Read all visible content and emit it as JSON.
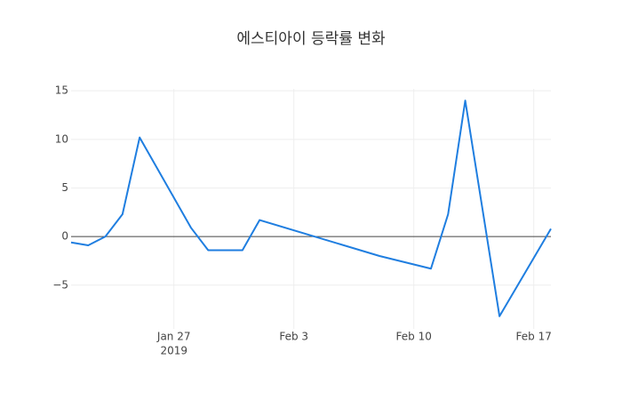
{
  "chart_data": {
    "type": "line",
    "title": "에스티아이 등락률 변화",
    "x": [
      "2019-01-21",
      "2019-01-22",
      "2019-01-23",
      "2019-01-24",
      "2019-01-25",
      "2019-01-28",
      "2019-01-29",
      "2019-01-30",
      "2019-01-31",
      "2019-02-01",
      "2019-02-08",
      "2019-02-11",
      "2019-02-12",
      "2019-02-13",
      "2019-02-15",
      "2019-02-18"
    ],
    "values": [
      -0.6,
      -0.9,
      0,
      2.3,
      10.2,
      0.9,
      -1.4,
      -1.4,
      -1.4,
      1.7,
      -2.0,
      -3.3,
      2.3,
      14.0,
      -8.2,
      0.8
    ],
    "color": "#1f7ee0",
    "xlim": [
      "2019-01-21",
      "2019-02-18"
    ],
    "xticks": [
      {
        "value": "2019-01-27",
        "label": "Jan 27"
      },
      {
        "value": "2019-02-03",
        "label": "Feb 3"
      },
      {
        "value": "2019-02-10",
        "label": "Feb 10"
      },
      {
        "value": "2019-02-17",
        "label": "Feb 17"
      }
    ],
    "x_year_label": "2019",
    "ylim": [
      -9.5,
      15.2
    ],
    "yticks": [
      {
        "value": -5,
        "label": "−5"
      },
      0,
      5,
      10,
      15
    ],
    "grid": true,
    "zero_line": true
  }
}
